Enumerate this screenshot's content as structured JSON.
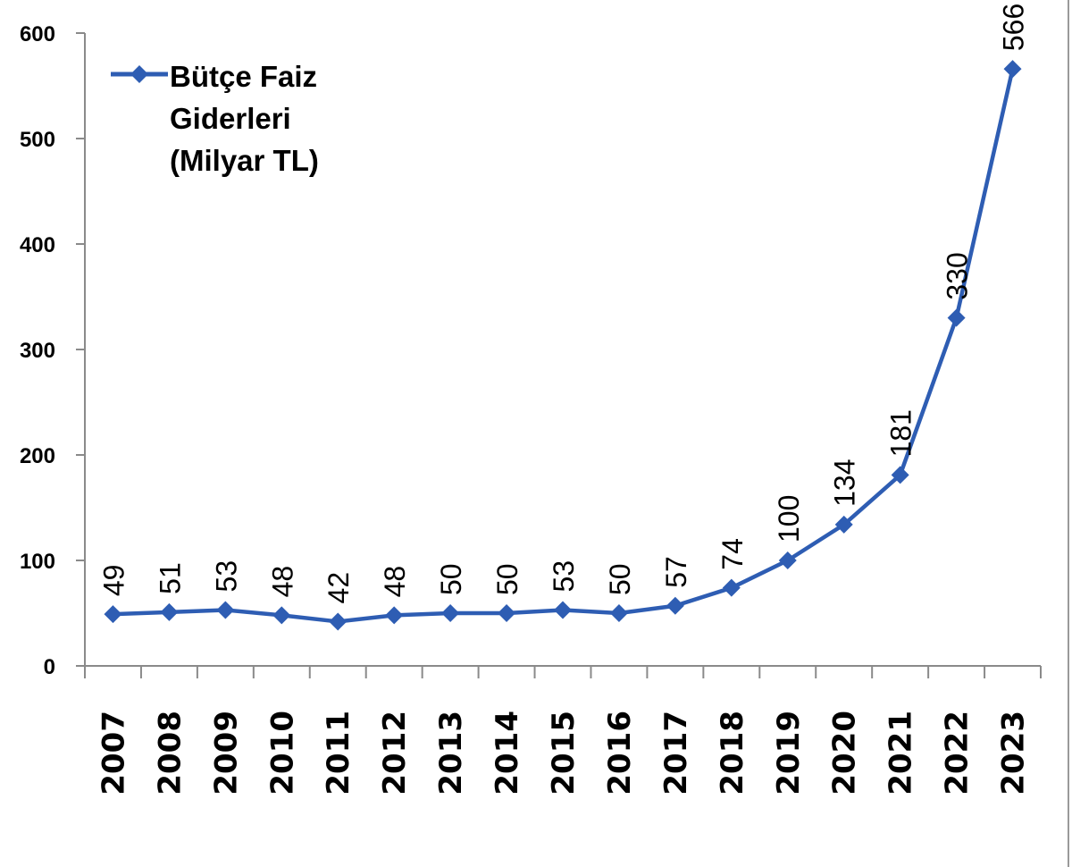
{
  "chart_data": {
    "type": "line",
    "title": "",
    "xlabel": "",
    "ylabel": "",
    "ylim": [
      0,
      600
    ],
    "yticks": [
      0,
      100,
      200,
      300,
      400,
      500,
      600
    ],
    "grid": false,
    "legend_position": "top-left inside",
    "categories": [
      "2007",
      "2008",
      "2009",
      "2010",
      "2011",
      "2012",
      "2013",
      "2014",
      "2015",
      "2016",
      "2017",
      "2018",
      "2019",
      "2020",
      "2021",
      "2022",
      "2023"
    ],
    "series": [
      {
        "name": "Bütçe Faiz Giderleri (Milyar TL)",
        "color": "#2e5db3",
        "marker": "diamond",
        "values": [
          49,
          51,
          53,
          48,
          42,
          48,
          50,
          50,
          53,
          50,
          57,
          74,
          100,
          134,
          181,
          330,
          566
        ]
      }
    ],
    "data_labels": [
      "49",
      "51",
      "53",
      "48",
      "42",
      "48",
      "50",
      "50",
      "53",
      "50",
      "57",
      "74",
      "100",
      "134",
      "181",
      "330",
      "566"
    ]
  },
  "legend": {
    "line1": "Bütçe Faiz",
    "line2": "Giderleri",
    "line3": "(Milyar TL)"
  }
}
